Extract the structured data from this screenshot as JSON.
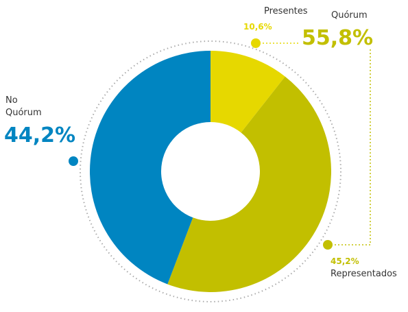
{
  "chart_data": {
    "type": "donut",
    "categories": [
      "Presentes",
      "Representados",
      "No Quórum"
    ],
    "values": [
      10.6,
      45.2,
      44.2
    ],
    "value_labels": [
      "10,6%",
      "45,2%",
      "44,2%"
    ],
    "colors": [
      "#e6d800",
      "#c2bf00",
      "#0085c1"
    ],
    "annotations": [
      {
        "label": "Quórum",
        "value": 55.8,
        "value_label": "55,8%"
      }
    ]
  }
}
